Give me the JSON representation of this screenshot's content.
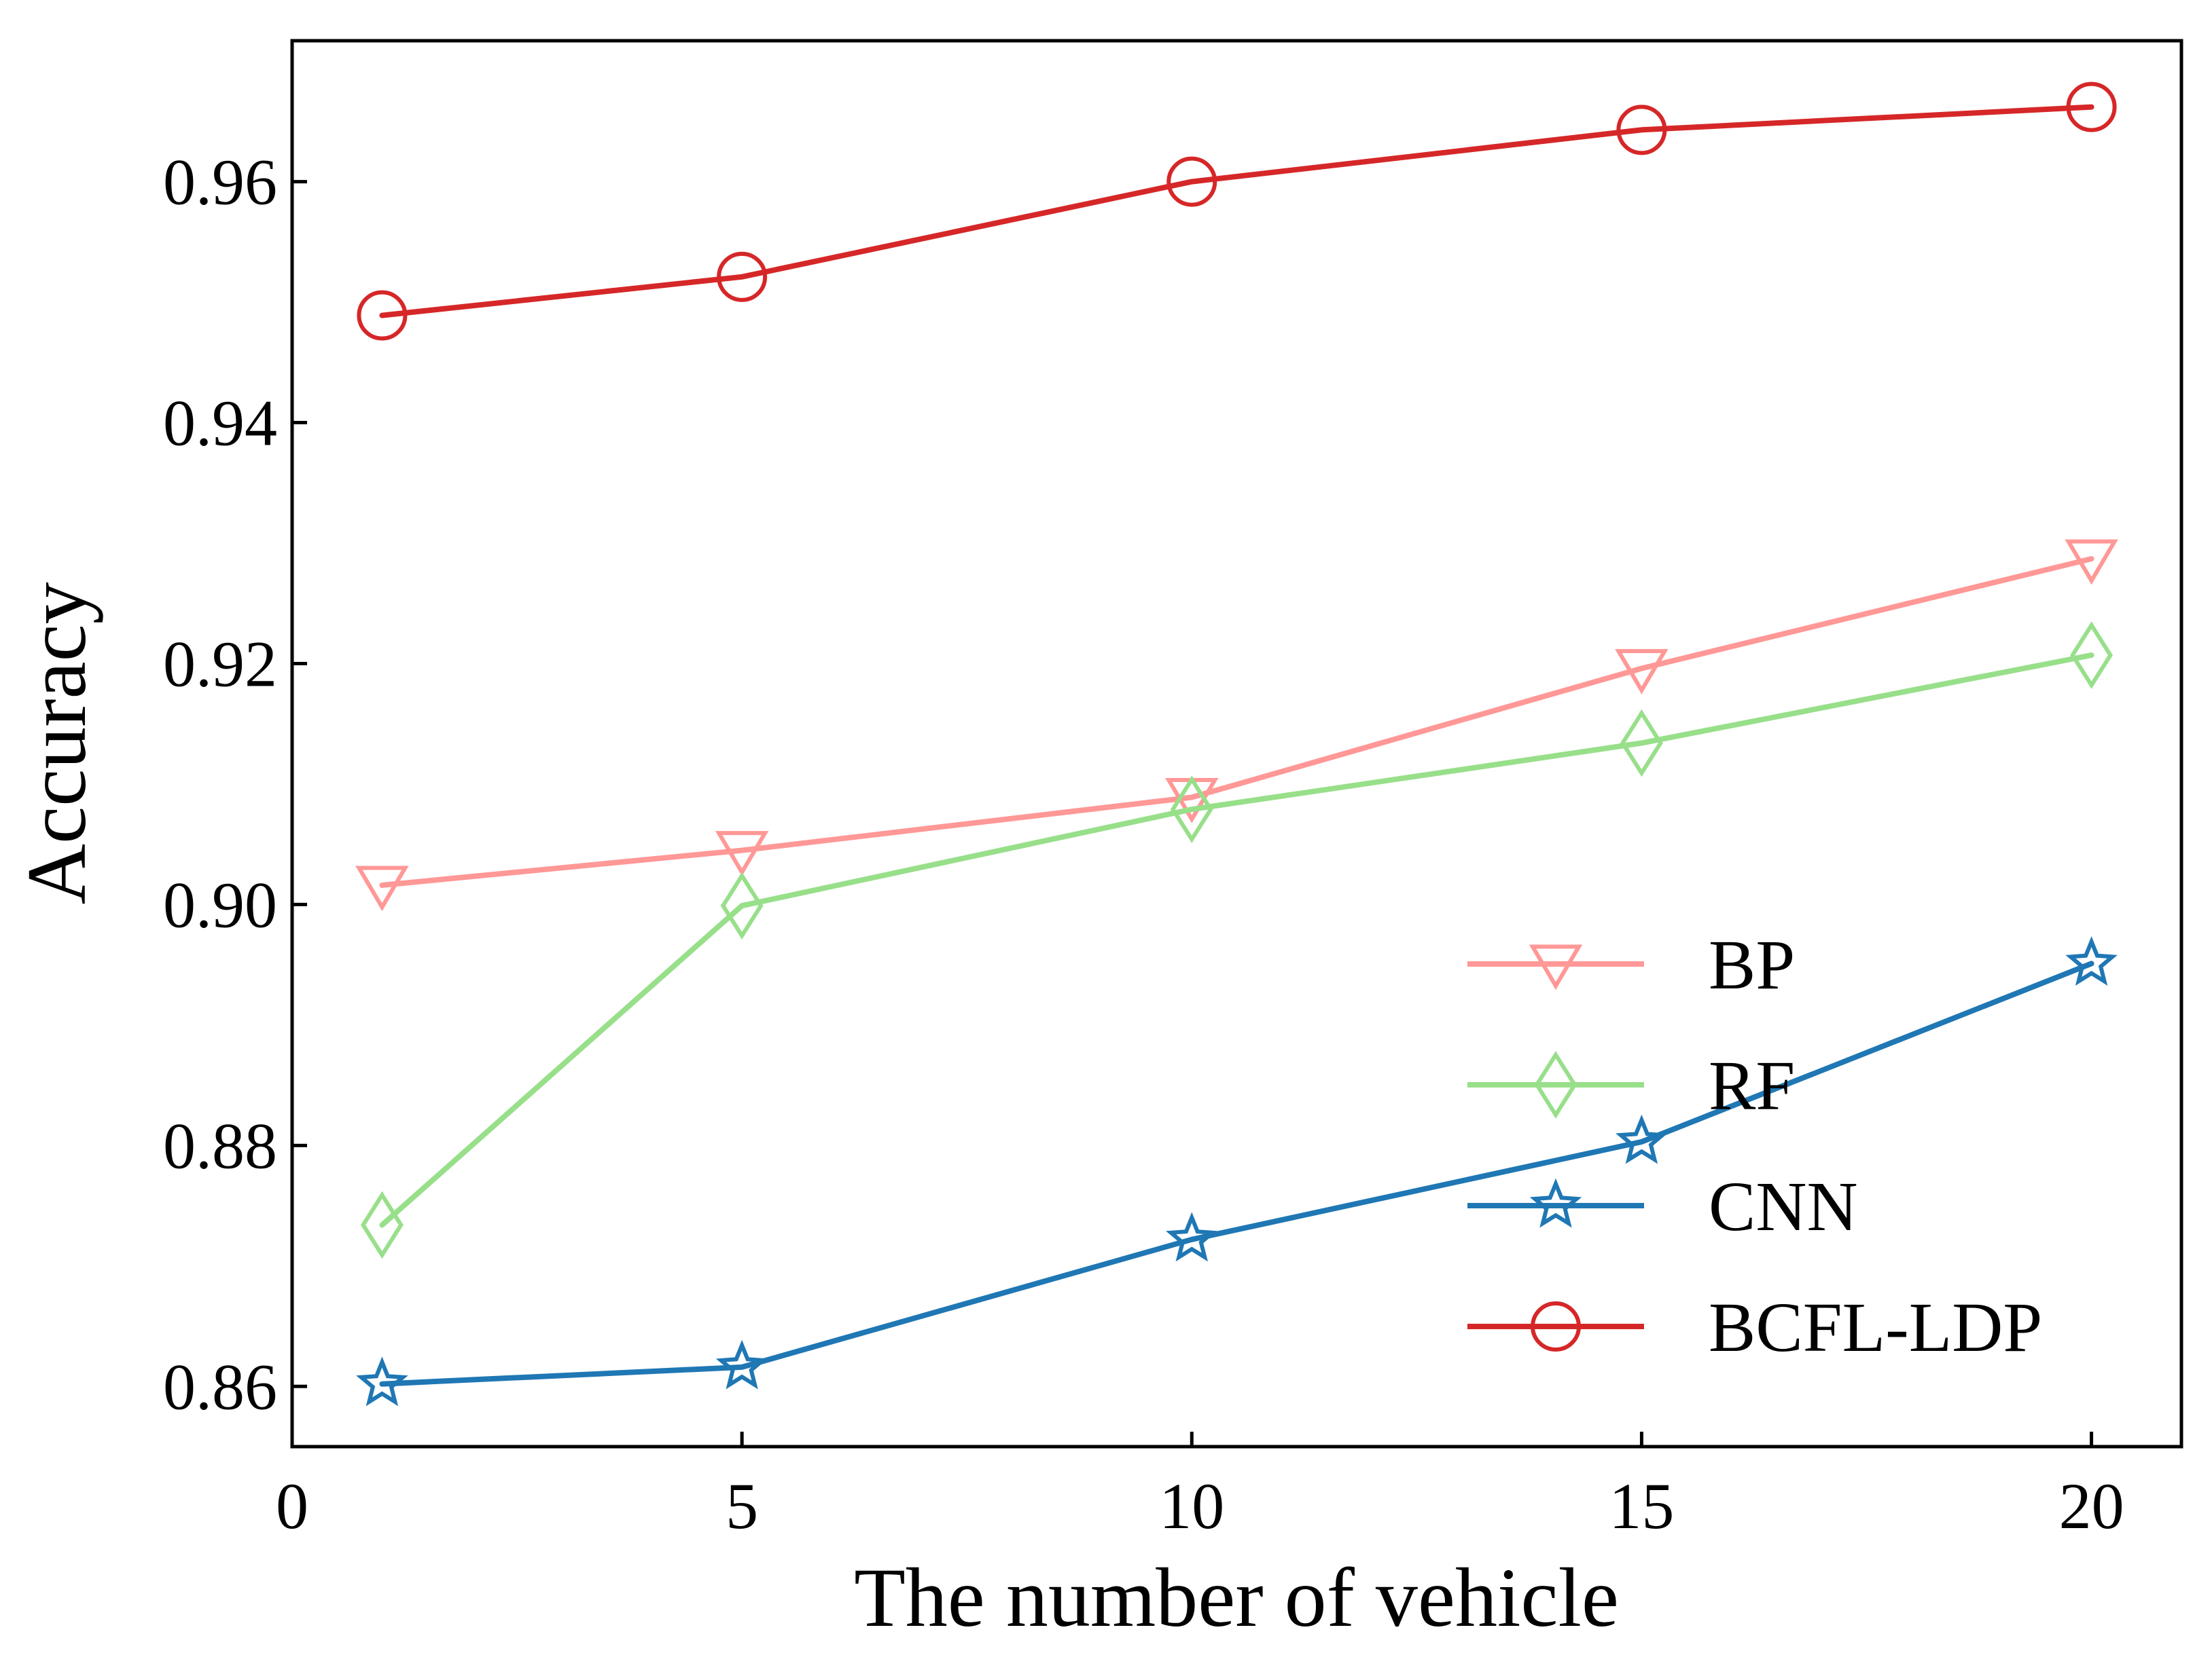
{
  "chart_data": {
    "type": "line",
    "title": "",
    "xlabel": "The number of vehicle",
    "ylabel": "Accuracy",
    "xlim": [
      0,
      21
    ],
    "ylim": [
      0.855,
      0.9717
    ],
    "xticks": [
      0,
      5,
      10,
      15,
      20
    ],
    "xtick_labels": [
      "0",
      "5",
      "10",
      "15",
      "20"
    ],
    "yticks": [
      0.86,
      0.88,
      0.9,
      0.92,
      0.94,
      0.96
    ],
    "ytick_labels": [
      "0.86",
      "0.88",
      "0.90",
      "0.92",
      "0.94",
      "0.96"
    ],
    "grid": false,
    "legend_position": "lower-right",
    "x": [
      1,
      5,
      10,
      15,
      20
    ],
    "series": [
      {
        "name": "BP",
        "color": "#FF9896",
        "marker": "triangle-down",
        "values": [
          0.9016,
          0.9045,
          0.9089,
          0.9196,
          0.9287
        ]
      },
      {
        "name": "RF",
        "color": "#98DF8A",
        "marker": "diamond",
        "values": [
          0.8734,
          0.8999,
          0.9079,
          0.9134,
          0.9207
        ]
      },
      {
        "name": "CNN",
        "color": "#1F77B4",
        "marker": "star",
        "values": [
          0.8602,
          0.8616,
          0.8722,
          0.8803,
          0.8951
        ]
      },
      {
        "name": "BCFL-LDP",
        "color": "#D62728",
        "marker": "circle",
        "values": [
          0.9489,
          0.9521,
          0.96,
          0.9643,
          0.9662
        ]
      }
    ]
  }
}
